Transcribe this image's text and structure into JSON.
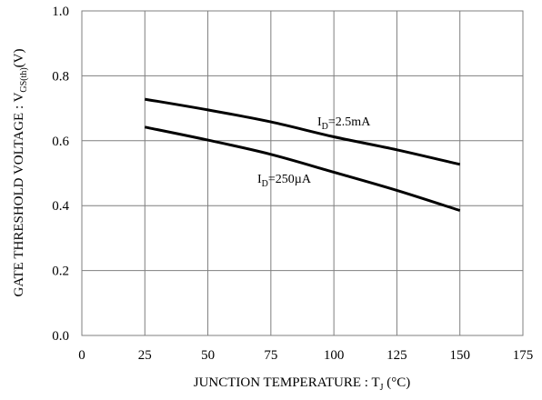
{
  "chart_data": {
    "type": "line",
    "title": "",
    "xlabel": {
      "main": "JUNCTION TEMPERATURE : T",
      "sub": "J",
      "tail": " (°C)"
    },
    "ylabel": {
      "main": "GATE THRESHOLD VOLTAGE : V",
      "sub": "GS(th)",
      "tail": "(V)"
    },
    "xlim": [
      0,
      175
    ],
    "ylim": [
      0.0,
      1.0
    ],
    "x_ticks": [
      0,
      25,
      50,
      75,
      100,
      125,
      150,
      175
    ],
    "y_ticks": [
      "0.0",
      "0.2",
      "0.4",
      "0.6",
      "0.8",
      "1.0"
    ],
    "grid": true,
    "series": [
      {
        "name": "I_D=2.5mA",
        "label": {
          "main": "I",
          "sub": "D",
          "tail": "=2.5mA"
        },
        "x": [
          25,
          50,
          75,
          100,
          125,
          150
        ],
        "y": [
          0.728,
          0.695,
          0.658,
          0.612,
          0.572,
          0.527
        ]
      },
      {
        "name": "I_D=250µA",
        "label": {
          "main": "I",
          "sub": "D",
          "tail": "=250µA"
        },
        "x": [
          25,
          50,
          75,
          100,
          125,
          150
        ],
        "y": [
          0.642,
          0.602,
          0.558,
          0.503,
          0.447,
          0.385
        ]
      }
    ]
  }
}
